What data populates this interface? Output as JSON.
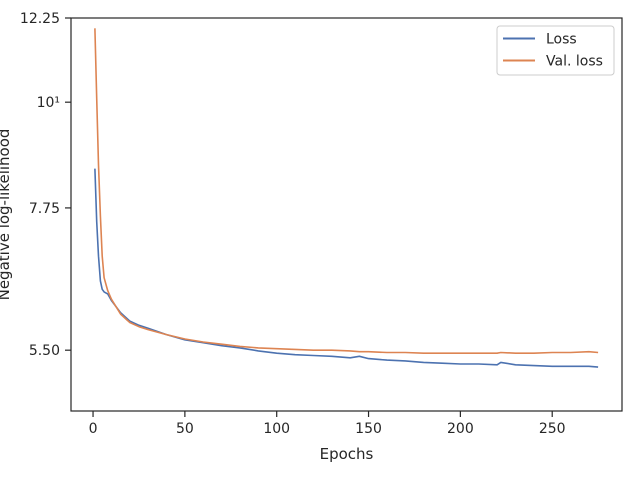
{
  "chart_data": {
    "type": "line",
    "xlabel": "Epochs",
    "ylabel": "Negative log-likelihood",
    "xlim": [
      -12,
      288
    ],
    "ylim": [
      4.75,
      12.25
    ],
    "yscale": "log",
    "xticks": [
      0,
      50,
      100,
      150,
      200,
      250
    ],
    "xtick_labels": [
      "0",
      "50",
      "100",
      "150",
      "200",
      "250"
    ],
    "yticks": [
      5.5,
      7.75,
      10,
      12.25
    ],
    "ytick_labels": [
      "5.50",
      "7.75",
      "10¹",
      "12.25"
    ],
    "grid": false,
    "legend": {
      "placement": "top-right"
    },
    "x": [
      1,
      2,
      3,
      4,
      5,
      6,
      8,
      10,
      15,
      20,
      25,
      30,
      40,
      50,
      60,
      70,
      80,
      90,
      100,
      110,
      120,
      130,
      140,
      145,
      150,
      160,
      170,
      180,
      190,
      200,
      210,
      220,
      222,
      230,
      240,
      250,
      260,
      270,
      275
    ],
    "series": [
      {
        "name": "Loss",
        "color": "#4c72b0",
        "values": [
          8.52,
          7.5,
          6.9,
          6.5,
          6.37,
          6.33,
          6.3,
          6.2,
          6.02,
          5.9,
          5.84,
          5.8,
          5.71,
          5.64,
          5.6,
          5.56,
          5.53,
          5.49,
          5.46,
          5.44,
          5.43,
          5.42,
          5.4,
          5.42,
          5.39,
          5.37,
          5.36,
          5.34,
          5.33,
          5.32,
          5.32,
          5.31,
          5.34,
          5.31,
          5.3,
          5.29,
          5.29,
          5.29,
          5.28
        ]
      },
      {
        "name": "Val. loss",
        "color": "#dd8452",
        "values": [
          11.95,
          10.1,
          8.6,
          7.6,
          6.9,
          6.55,
          6.35,
          6.22,
          6.0,
          5.88,
          5.82,
          5.78,
          5.71,
          5.65,
          5.61,
          5.58,
          5.55,
          5.53,
          5.52,
          5.51,
          5.5,
          5.5,
          5.49,
          5.48,
          5.48,
          5.47,
          5.47,
          5.46,
          5.46,
          5.46,
          5.46,
          5.46,
          5.47,
          5.46,
          5.46,
          5.47,
          5.47,
          5.48,
          5.47
        ]
      }
    ]
  }
}
